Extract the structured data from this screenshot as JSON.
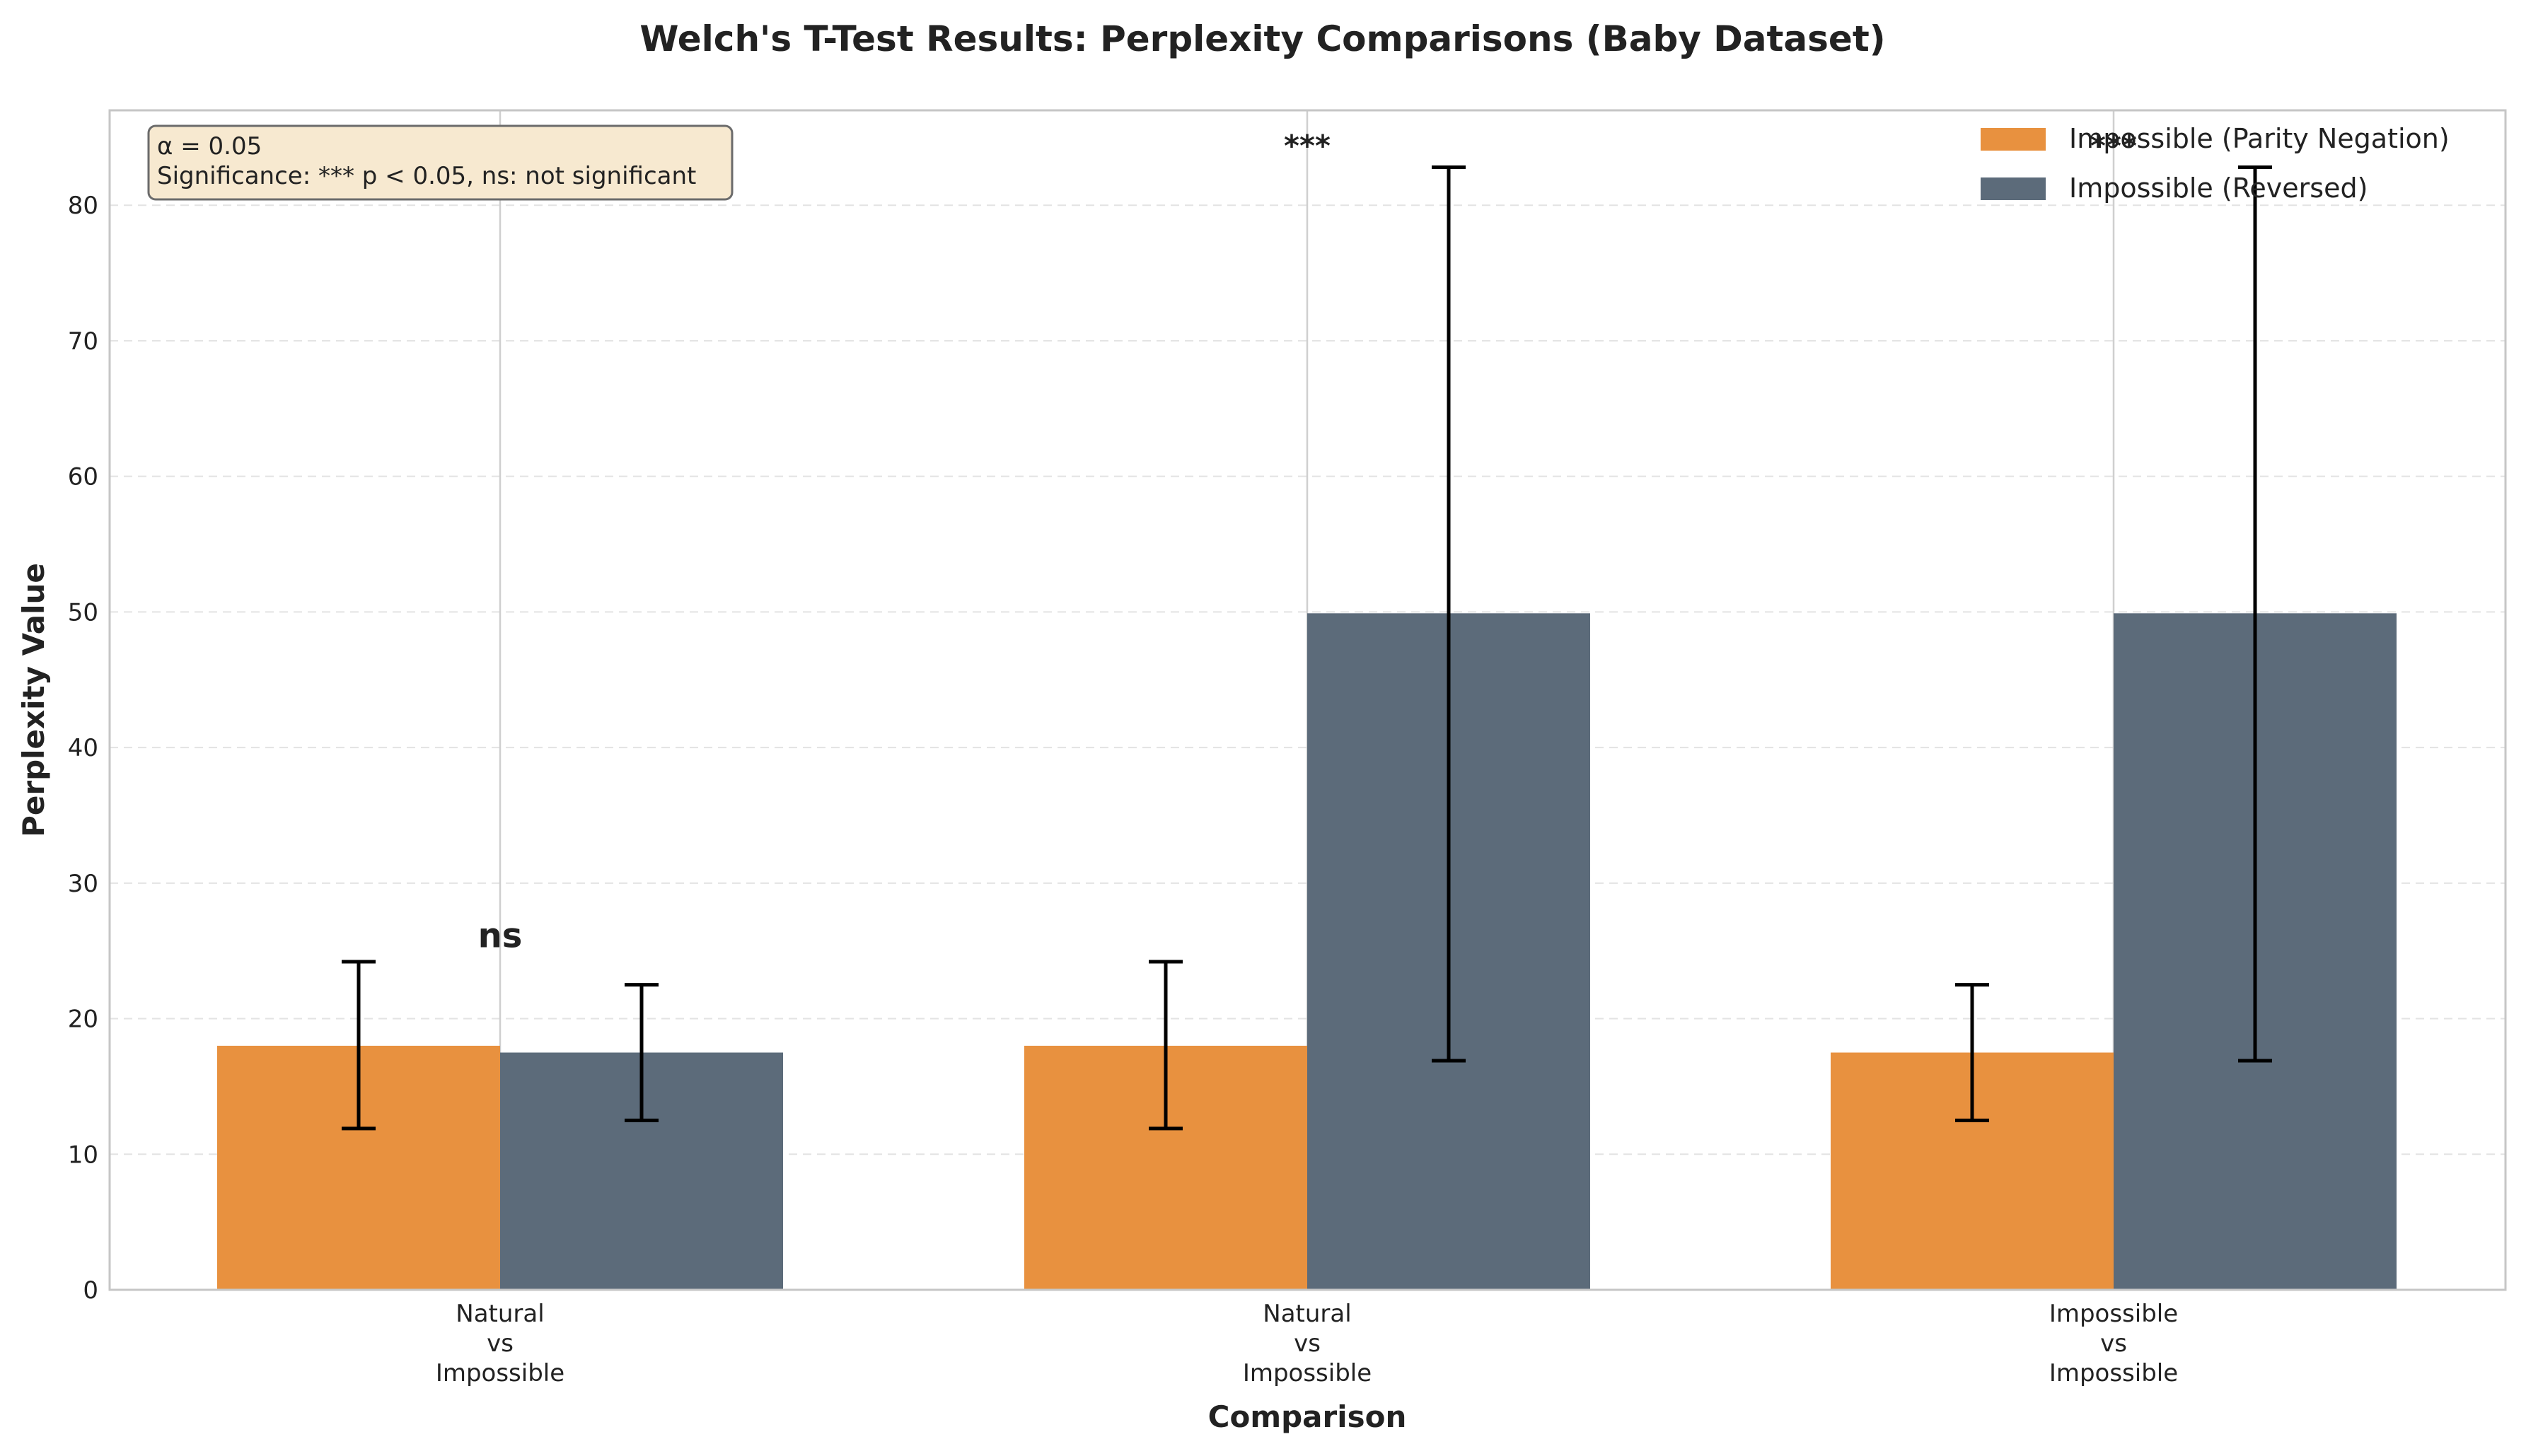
{
  "chart_data": {
    "type": "bar",
    "title": "Welch's T-Test Results: Perplexity Comparisons (Baby Dataset)",
    "xlabel": "Comparison",
    "ylabel": "Perplexity Value",
    "ylim": [
      0,
      87
    ],
    "yticks": [
      0,
      10,
      20,
      30,
      40,
      50,
      60,
      70,
      80
    ],
    "grid": true,
    "legend_position": "top-right",
    "categories": [
      [
        "Natural",
        "vs",
        "Impossible"
      ],
      [
        "Natural",
        "vs",
        "Impossible"
      ],
      [
        "Impossible",
        "vs",
        "Impossible"
      ]
    ],
    "series": [
      {
        "name": "Impossible (Parity Negation)",
        "color": "#e8913f",
        "values": [
          18.0,
          18.0,
          17.5
        ],
        "err_low": [
          11.9,
          11.9,
          12.5
        ],
        "err_high": [
          24.2,
          24.2,
          22.5
        ]
      },
      {
        "name": "Impossible (Reversed)",
        "color": "#5c6b7a",
        "values": [
          17.5,
          49.9,
          49.9
        ],
        "err_low": [
          12.5,
          16.9,
          16.9
        ],
        "err_high": [
          22.5,
          82.8,
          82.8
        ]
      }
    ],
    "significance": [
      {
        "label": "ns",
        "y": 26
      },
      {
        "label": "***",
        "y": 85
      },
      {
        "label": "***",
        "y": 85
      }
    ],
    "annotation": {
      "line1": "α = 0.05",
      "line2": "Significance: *** p < 0.05, ns: not significant"
    }
  }
}
